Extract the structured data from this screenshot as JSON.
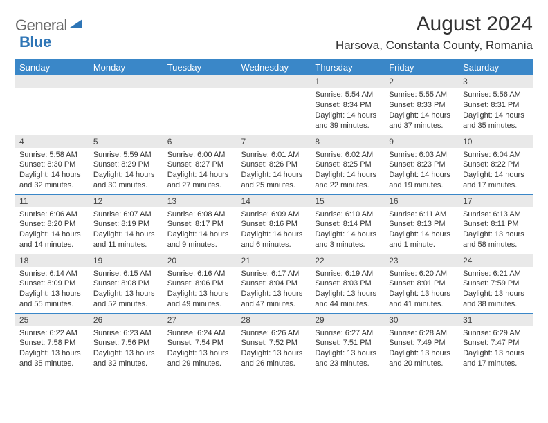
{
  "logo": {
    "text_gray": "General",
    "text_blue": "Blue"
  },
  "title": "August 2024",
  "location": "Harsova, Constanta County, Romania",
  "colors": {
    "header_bg": "#3a87c8",
    "header_fg": "#ffffff",
    "daynum_bg": "#e9e9e9",
    "cell_border": "#3a87c8",
    "logo_gray": "#6a6a6a",
    "logo_blue": "#2e75b6"
  },
  "weekdays": [
    "Sunday",
    "Monday",
    "Tuesday",
    "Wednesday",
    "Thursday",
    "Friday",
    "Saturday"
  ],
  "weeks": [
    [
      null,
      null,
      null,
      null,
      {
        "n": "1",
        "sr": "5:54 AM",
        "ss": "8:34 PM",
        "d1": "14 hours",
        "d2": "and 39 minutes."
      },
      {
        "n": "2",
        "sr": "5:55 AM",
        "ss": "8:33 PM",
        "d1": "14 hours",
        "d2": "and 37 minutes."
      },
      {
        "n": "3",
        "sr": "5:56 AM",
        "ss": "8:31 PM",
        "d1": "14 hours",
        "d2": "and 35 minutes."
      }
    ],
    [
      {
        "n": "4",
        "sr": "5:58 AM",
        "ss": "8:30 PM",
        "d1": "14 hours",
        "d2": "and 32 minutes."
      },
      {
        "n": "5",
        "sr": "5:59 AM",
        "ss": "8:29 PM",
        "d1": "14 hours",
        "d2": "and 30 minutes."
      },
      {
        "n": "6",
        "sr": "6:00 AM",
        "ss": "8:27 PM",
        "d1": "14 hours",
        "d2": "and 27 minutes."
      },
      {
        "n": "7",
        "sr": "6:01 AM",
        "ss": "8:26 PM",
        "d1": "14 hours",
        "d2": "and 25 minutes."
      },
      {
        "n": "8",
        "sr": "6:02 AM",
        "ss": "8:25 PM",
        "d1": "14 hours",
        "d2": "and 22 minutes."
      },
      {
        "n": "9",
        "sr": "6:03 AM",
        "ss": "8:23 PM",
        "d1": "14 hours",
        "d2": "and 19 minutes."
      },
      {
        "n": "10",
        "sr": "6:04 AM",
        "ss": "8:22 PM",
        "d1": "14 hours",
        "d2": "and 17 minutes."
      }
    ],
    [
      {
        "n": "11",
        "sr": "6:06 AM",
        "ss": "8:20 PM",
        "d1": "14 hours",
        "d2": "and 14 minutes."
      },
      {
        "n": "12",
        "sr": "6:07 AM",
        "ss": "8:19 PM",
        "d1": "14 hours",
        "d2": "and 11 minutes."
      },
      {
        "n": "13",
        "sr": "6:08 AM",
        "ss": "8:17 PM",
        "d1": "14 hours",
        "d2": "and 9 minutes."
      },
      {
        "n": "14",
        "sr": "6:09 AM",
        "ss": "8:16 PM",
        "d1": "14 hours",
        "d2": "and 6 minutes."
      },
      {
        "n": "15",
        "sr": "6:10 AM",
        "ss": "8:14 PM",
        "d1": "14 hours",
        "d2": "and 3 minutes."
      },
      {
        "n": "16",
        "sr": "6:11 AM",
        "ss": "8:13 PM",
        "d1": "14 hours",
        "d2": "and 1 minute."
      },
      {
        "n": "17",
        "sr": "6:13 AM",
        "ss": "8:11 PM",
        "d1": "13 hours",
        "d2": "and 58 minutes."
      }
    ],
    [
      {
        "n": "18",
        "sr": "6:14 AM",
        "ss": "8:09 PM",
        "d1": "13 hours",
        "d2": "and 55 minutes."
      },
      {
        "n": "19",
        "sr": "6:15 AM",
        "ss": "8:08 PM",
        "d1": "13 hours",
        "d2": "and 52 minutes."
      },
      {
        "n": "20",
        "sr": "6:16 AM",
        "ss": "8:06 PM",
        "d1": "13 hours",
        "d2": "and 49 minutes."
      },
      {
        "n": "21",
        "sr": "6:17 AM",
        "ss": "8:04 PM",
        "d1": "13 hours",
        "d2": "and 47 minutes."
      },
      {
        "n": "22",
        "sr": "6:19 AM",
        "ss": "8:03 PM",
        "d1": "13 hours",
        "d2": "and 44 minutes."
      },
      {
        "n": "23",
        "sr": "6:20 AM",
        "ss": "8:01 PM",
        "d1": "13 hours",
        "d2": "and 41 minutes."
      },
      {
        "n": "24",
        "sr": "6:21 AM",
        "ss": "7:59 PM",
        "d1": "13 hours",
        "d2": "and 38 minutes."
      }
    ],
    [
      {
        "n": "25",
        "sr": "6:22 AM",
        "ss": "7:58 PM",
        "d1": "13 hours",
        "d2": "and 35 minutes."
      },
      {
        "n": "26",
        "sr": "6:23 AM",
        "ss": "7:56 PM",
        "d1": "13 hours",
        "d2": "and 32 minutes."
      },
      {
        "n": "27",
        "sr": "6:24 AM",
        "ss": "7:54 PM",
        "d1": "13 hours",
        "d2": "and 29 minutes."
      },
      {
        "n": "28",
        "sr": "6:26 AM",
        "ss": "7:52 PM",
        "d1": "13 hours",
        "d2": "and 26 minutes."
      },
      {
        "n": "29",
        "sr": "6:27 AM",
        "ss": "7:51 PM",
        "d1": "13 hours",
        "d2": "and 23 minutes."
      },
      {
        "n": "30",
        "sr": "6:28 AM",
        "ss": "7:49 PM",
        "d1": "13 hours",
        "d2": "and 20 minutes."
      },
      {
        "n": "31",
        "sr": "6:29 AM",
        "ss": "7:47 PM",
        "d1": "13 hours",
        "d2": "and 17 minutes."
      }
    ]
  ],
  "labels": {
    "sunrise": "Sunrise: ",
    "sunset": "Sunset: ",
    "daylight": "Daylight: "
  }
}
